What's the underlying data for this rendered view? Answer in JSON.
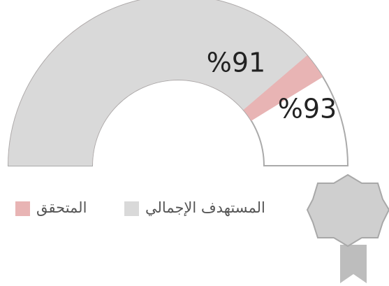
{
  "chart_data": {
    "type": "gauge",
    "ylim": [
      60,
      100
    ],
    "series": [
      {
        "name": "المتحقق",
        "color": "#e8b4b4",
        "values": [
          93
        ],
        "value_labels": [
          "%93"
        ]
      },
      {
        "name": "المستهدف الإجمالي",
        "color": "#d9d9d9",
        "values": [
          91
        ],
        "value_labels": [
          "%91"
        ]
      }
    ],
    "track_color": "#ffffff",
    "track_stroke": "#aaaaaa"
  }
}
